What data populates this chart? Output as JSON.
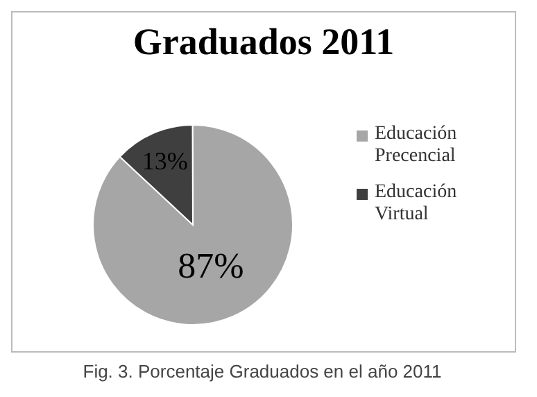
{
  "chart_data": {
    "type": "pie",
    "title": "Graduados 2011",
    "categories": [
      "Educación Precencial",
      "Educación Virtual"
    ],
    "values": [
      87,
      13
    ],
    "colors": [
      "#a6a6a6",
      "#3f3f3f"
    ],
    "value_labels": [
      "87%",
      "13%"
    ],
    "legend": "right",
    "annotations": [
      "Fig. 3. Porcentaje Graduados en el año 2011"
    ]
  }
}
